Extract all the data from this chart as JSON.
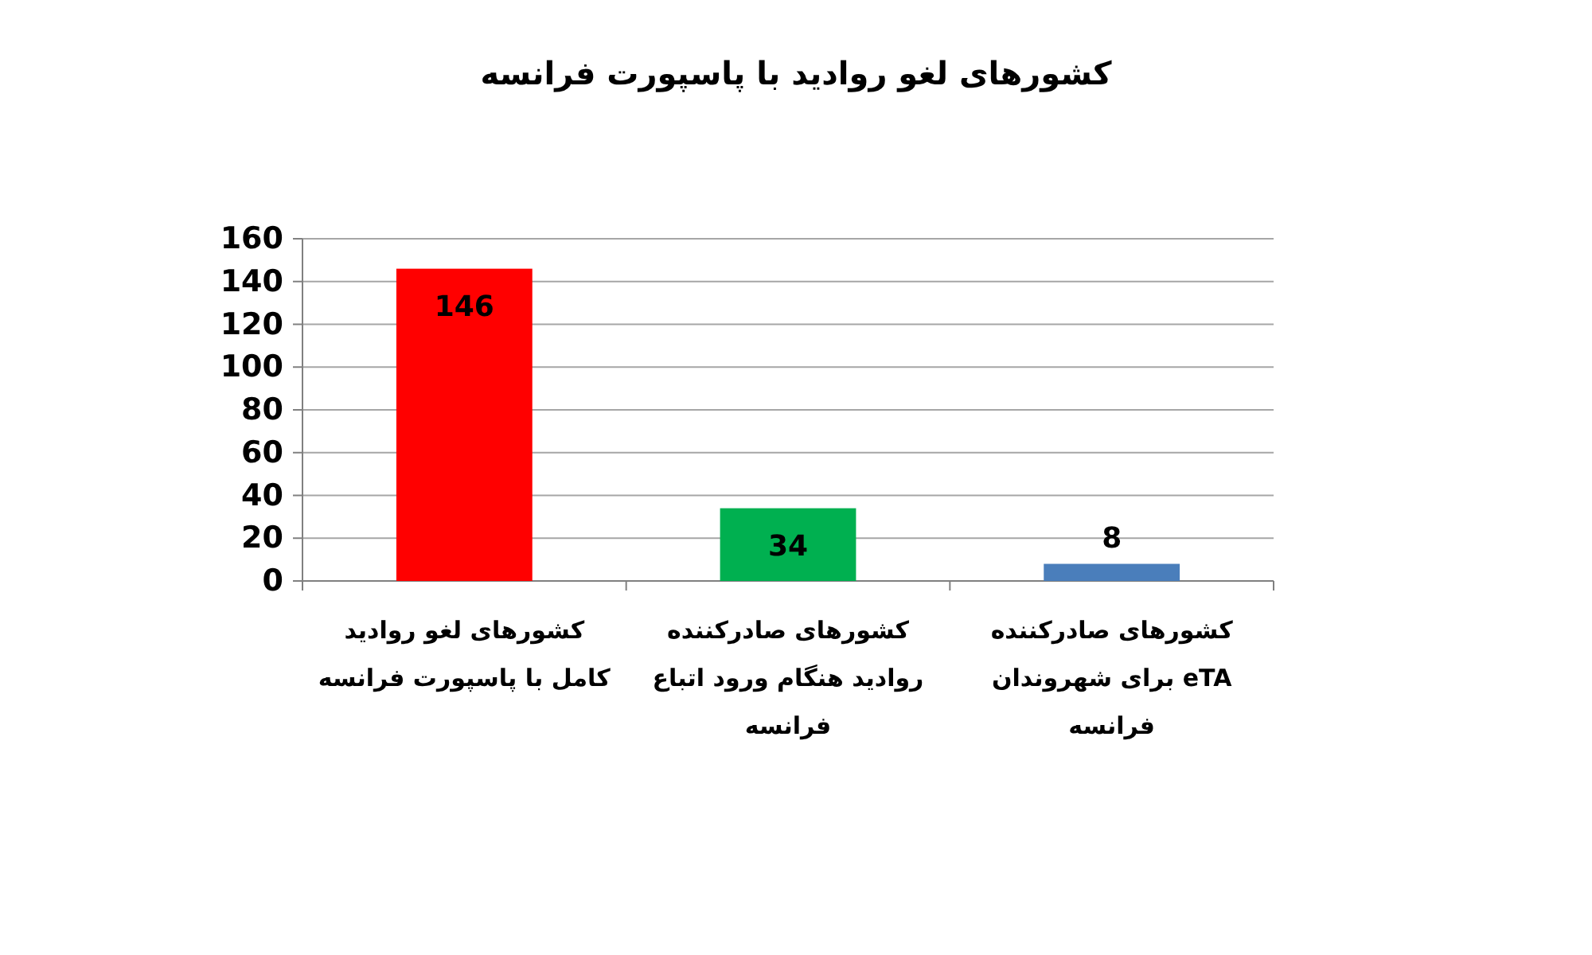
{
  "chart_data": {
    "type": "bar",
    "title": "کشورهای لغو روادید با پاسپورت فرانسه",
    "categories": [
      "کشورهای لغو روادید کامل با پاسپورت فرانسه",
      "کشورهای صادرکننده روادید هنگام ورود اتباع فرانسه",
      "کشورهای صادرکننده eTA برای شهروندان فرانسه"
    ],
    "values": [
      146,
      34,
      8
    ],
    "colors": [
      "#ff0000",
      "#00b050",
      "#4a7ebb"
    ],
    "ylim": [
      0,
      160
    ],
    "yticks": [
      0,
      20,
      40,
      60,
      80,
      100,
      120,
      140,
      160
    ],
    "grid": "y",
    "data_labels": true
  }
}
